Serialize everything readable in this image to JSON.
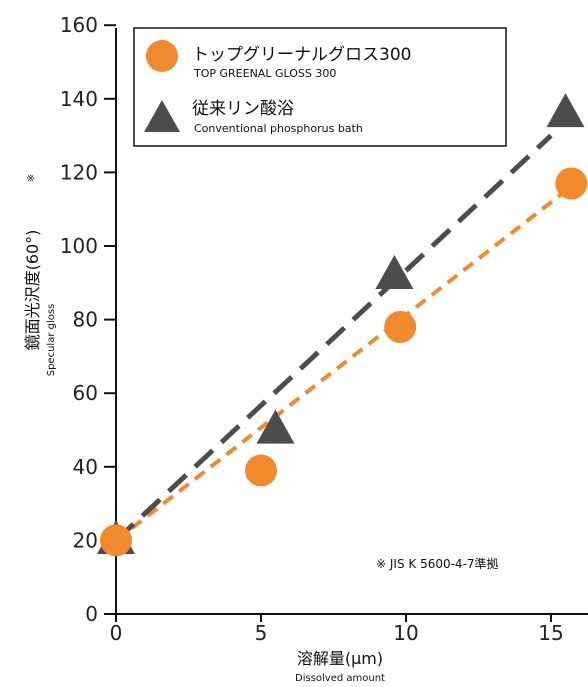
{
  "chart_data": {
    "type": "scatter",
    "x_ticks": [
      "0",
      "5",
      "10",
      "15"
    ],
    "y_ticks": [
      "0",
      "20",
      "40",
      "60",
      "80",
      "100",
      "120",
      "140",
      "160"
    ],
    "xlim": [
      0,
      16
    ],
    "ylim": [
      0,
      160
    ],
    "xlabel": "溶解量(μm)",
    "xlabel_sub": "Dissolved amount",
    "ylabel": "鏡面光沢度(60°)",
    "ylabel_mark": "※",
    "ylabel_sub": "Specular gloss",
    "note": "※ JIS K 5600-4-7準拠",
    "legend_position": "top-left",
    "grid": false,
    "series": [
      {
        "name": "トップグリーナルグロス300",
        "name_sub": "TOP GREENAL GLOSS 300",
        "marker": "circle",
        "color": "#f08a2c",
        "x": [
          0,
          5,
          9.8,
          15.7
        ],
        "y": [
          20,
          39,
          78,
          117
        ],
        "trend": [
          [
            0,
            20
          ],
          [
            16,
            118
          ]
        ]
      },
      {
        "name": "従来リン酸浴",
        "name_sub": "Conventional phosphorus bath",
        "marker": "triangle",
        "color": "#4d4d4d",
        "x": [
          0,
          5.5,
          9.6,
          15.5
        ],
        "y": [
          20,
          50,
          92,
          136
        ],
        "trend": [
          [
            0,
            20
          ],
          [
            15,
            130
          ]
        ]
      }
    ]
  }
}
